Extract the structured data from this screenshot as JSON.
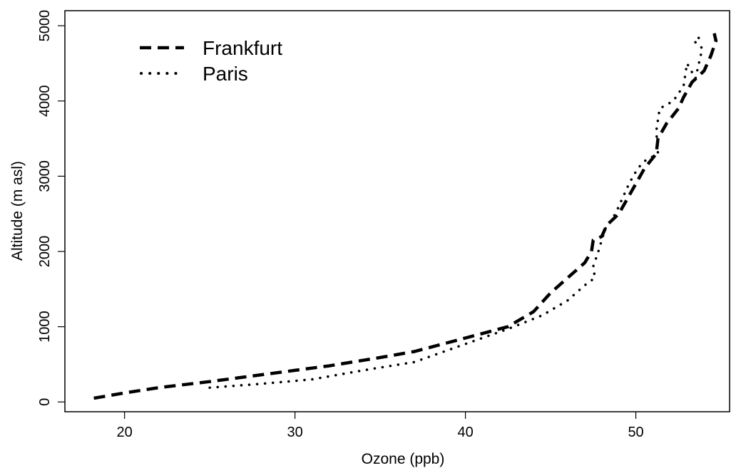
{
  "chart_data": {
    "type": "line",
    "title": "",
    "xlabel": "Ozone (ppb)",
    "ylabel": "Altitude (m asl)",
    "xlim": [
      16.5,
      55.5
    ],
    "ylim": [
      -130,
      5200
    ],
    "xticks": [
      20,
      30,
      40,
      50
    ],
    "yticks": [
      0,
      1000,
      2000,
      3000,
      4000,
      5000
    ],
    "xtick_labels": [
      "20",
      "30",
      "40",
      "50"
    ],
    "ytick_labels": [
      "0",
      "1000",
      "2000",
      "3000",
      "4000",
      "5000"
    ],
    "grid": false,
    "legend_position": "top-left",
    "series": [
      {
        "name": "Frankfurt",
        "style": "dashed",
        "color": "#000000",
        "points": [
          [
            18.2,
            50
          ],
          [
            20,
            120
          ],
          [
            22,
            190
          ],
          [
            25,
            270
          ],
          [
            27,
            330
          ],
          [
            30,
            420
          ],
          [
            32,
            480
          ],
          [
            35,
            590
          ],
          [
            37,
            670
          ],
          [
            40,
            850
          ],
          [
            42.5,
            1000
          ],
          [
            44,
            1200
          ],
          [
            45,
            1450
          ],
          [
            46,
            1650
          ],
          [
            47,
            1850
          ],
          [
            47.4,
            2000
          ],
          [
            47.5,
            2150
          ],
          [
            48,
            2200
          ],
          [
            48.3,
            2350
          ],
          [
            49,
            2500
          ],
          [
            49.5,
            2700
          ],
          [
            50,
            2900
          ],
          [
            50.5,
            3100
          ],
          [
            51.2,
            3300
          ],
          [
            51.3,
            3500
          ],
          [
            51.8,
            3700
          ],
          [
            52.5,
            3900
          ],
          [
            52.8,
            4050
          ],
          [
            53.3,
            4250
          ],
          [
            54,
            4400
          ],
          [
            54.4,
            4600
          ],
          [
            54.7,
            4800
          ],
          [
            54.6,
            4900
          ]
        ]
      },
      {
        "name": "Paris",
        "style": "dotted",
        "color": "#000000",
        "points": [
          [
            25,
            190
          ],
          [
            28,
            240
          ],
          [
            31,
            300
          ],
          [
            34,
            420
          ],
          [
            37,
            530
          ],
          [
            40,
            770
          ],
          [
            42.5,
            970
          ],
          [
            44.5,
            1150
          ],
          [
            46,
            1350
          ],
          [
            47,
            1550
          ],
          [
            47.6,
            1650
          ],
          [
            47.5,
            1800
          ],
          [
            47.8,
            2000
          ],
          [
            48.2,
            2300
          ],
          [
            48.8,
            2500
          ],
          [
            49.2,
            2700
          ],
          [
            49.6,
            2900
          ],
          [
            50.1,
            3100
          ],
          [
            50.5,
            3200
          ],
          [
            51.3,
            3300
          ],
          [
            51.2,
            3600
          ],
          [
            51.4,
            3900
          ],
          [
            52.2,
            4000
          ],
          [
            52.8,
            4200
          ],
          [
            53,
            4500
          ],
          [
            53.5,
            4300
          ],
          [
            53.9,
            4700
          ],
          [
            53.4,
            4800
          ],
          [
            54,
            4880
          ]
        ]
      }
    ]
  }
}
